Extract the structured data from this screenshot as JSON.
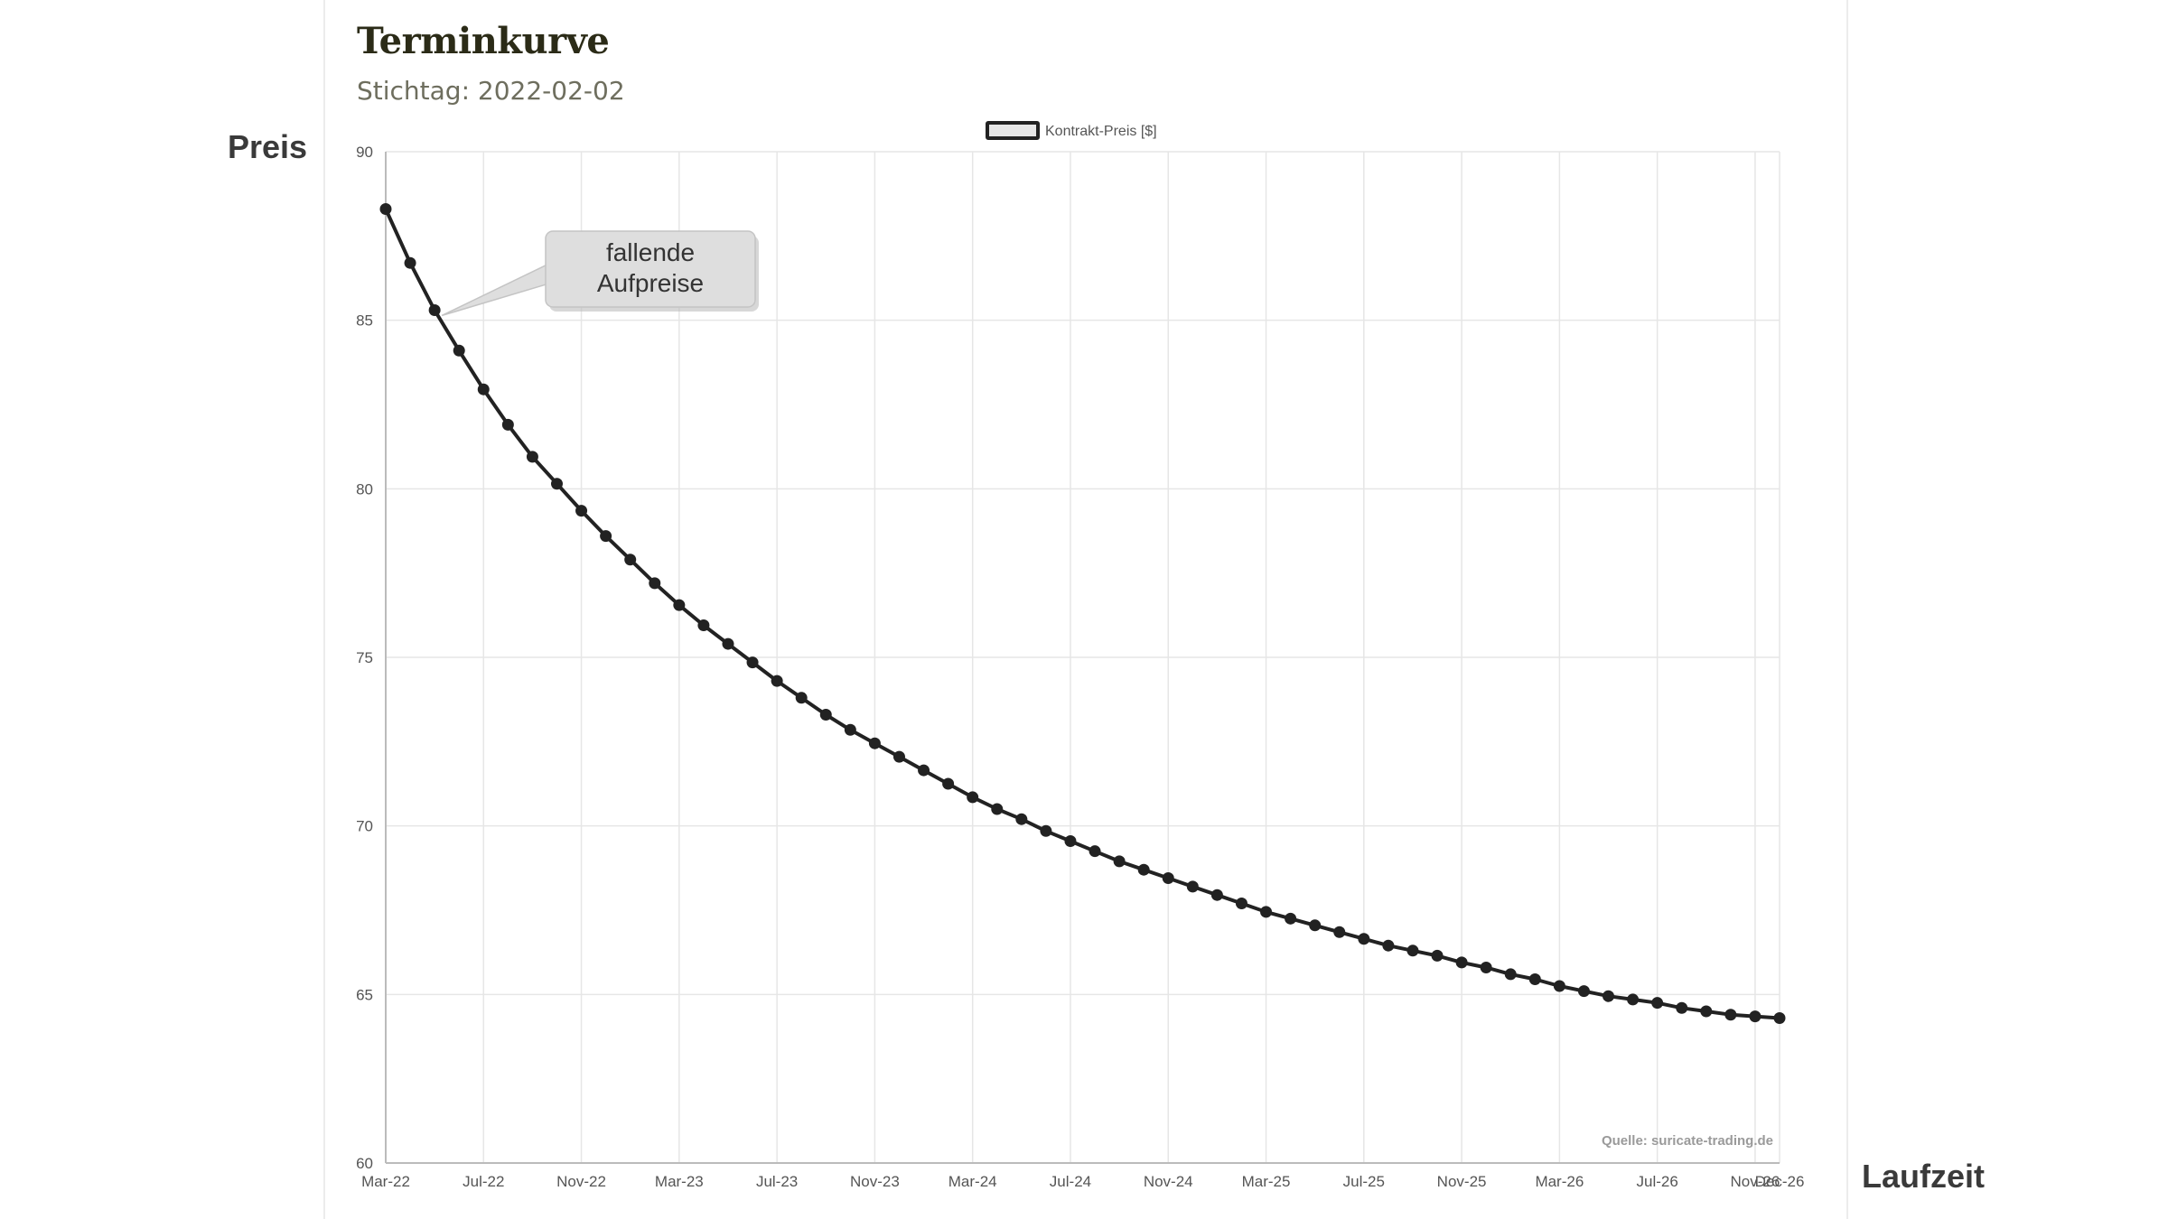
{
  "title": "Terminkurve",
  "subtitle": "Stichtag: 2022-02-02",
  "axis_titles": {
    "y": "Preis",
    "x": "Laufzeit"
  },
  "source_note": "Quelle: suricate-trading.de",
  "callout": {
    "lines": [
      "fallende",
      "Aufpreise"
    ],
    "anchor_index": 2
  },
  "colors": {
    "line": "#222222",
    "grid": "#e6e6e6",
    "legend_fill": "#e6e6e6",
    "callout_fill": "#dedede"
  },
  "chart_data": {
    "type": "line",
    "title": "Terminkurve",
    "subtitle": "Stichtag: 2022-02-02",
    "xlabel": "Laufzeit",
    "ylabel": "Preis",
    "ylim": [
      60,
      90
    ],
    "yticks": [
      60,
      65,
      70,
      75,
      80,
      85,
      90
    ],
    "xticks": [
      "Mar-22",
      "Jul-22",
      "Nov-22",
      "Mar-23",
      "Jul-23",
      "Nov-23",
      "Mar-24",
      "Jul-24",
      "Nov-24",
      "Mar-25",
      "Jul-25",
      "Nov-25",
      "Mar-26",
      "Jul-26",
      "Nov-26",
      "Dec-26"
    ],
    "grid": true,
    "legend_position": "top-center",
    "categories": [
      "Mar-22",
      "Apr-22",
      "May-22",
      "Jun-22",
      "Jul-22",
      "Aug-22",
      "Sep-22",
      "Oct-22",
      "Nov-22",
      "Dec-22",
      "Jan-23",
      "Feb-23",
      "Mar-23",
      "Apr-23",
      "May-23",
      "Jun-23",
      "Jul-23",
      "Aug-23",
      "Sep-23",
      "Oct-23",
      "Nov-23",
      "Dec-23",
      "Jan-24",
      "Feb-24",
      "Mar-24",
      "Apr-24",
      "May-24",
      "Jun-24",
      "Jul-24",
      "Aug-24",
      "Sep-24",
      "Oct-24",
      "Nov-24",
      "Dec-24",
      "Jan-25",
      "Feb-25",
      "Mar-25",
      "Apr-25",
      "May-25",
      "Jun-25",
      "Jul-25",
      "Aug-25",
      "Sep-25",
      "Oct-25",
      "Nov-25",
      "Dec-25",
      "Jan-26",
      "Feb-26",
      "Mar-26",
      "Apr-26",
      "May-26",
      "Jun-26",
      "Jul-26",
      "Aug-26",
      "Sep-26",
      "Oct-26",
      "Nov-26",
      "Dec-26"
    ],
    "series": [
      {
        "name": "Kontrakt-Preis [$]",
        "values": [
          88.3,
          86.7,
          85.3,
          84.1,
          82.95,
          81.9,
          80.95,
          80.15,
          79.35,
          78.6,
          77.9,
          77.2,
          76.55,
          75.95,
          75.4,
          74.85,
          74.3,
          73.8,
          73.3,
          72.85,
          72.45,
          72.05,
          71.65,
          71.25,
          70.85,
          70.5,
          70.2,
          69.85,
          69.55,
          69.25,
          68.95,
          68.7,
          68.45,
          68.2,
          67.95,
          67.7,
          67.45,
          67.25,
          67.05,
          66.85,
          66.65,
          66.45,
          66.3,
          66.15,
          65.95,
          65.8,
          65.6,
          65.45,
          65.25,
          65.1,
          64.95,
          64.85,
          64.75,
          64.6,
          64.5,
          64.4,
          64.35,
          64.3
        ]
      }
    ]
  }
}
